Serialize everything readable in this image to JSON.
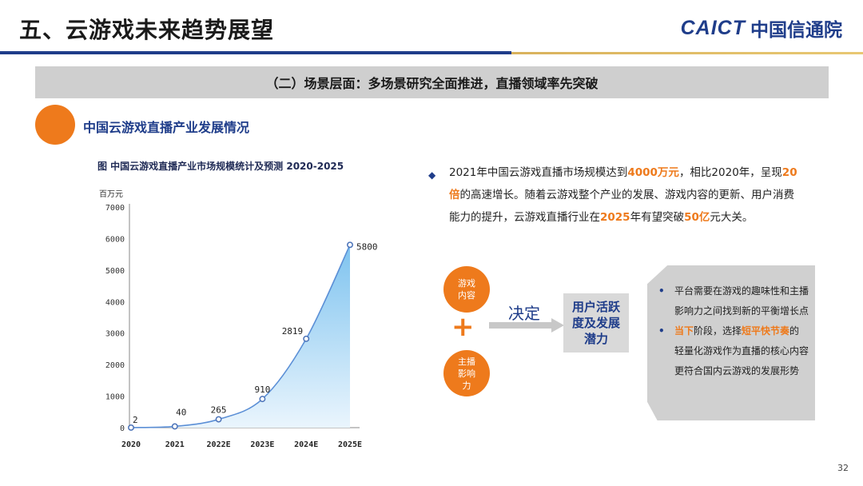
{
  "header": {
    "title": "五、云游戏未来趋势展望",
    "logo_en": "CAICT",
    "logo_cn": "中国信通院"
  },
  "section": {
    "label": "（二）场景层面：多场景研究全面推进，直播领域率先突破",
    "subheading": "中国云游戏直播产业发展情况"
  },
  "chart": {
    "caption": "图  中国云游戏直播产业市场规模统计及预测  2020-2025"
  },
  "chart_data": {
    "type": "area",
    "title": "图  中国云游戏直播产业市场规模统计及预测  2020-2025",
    "unit": "百万元",
    "categories": [
      "2020",
      "2021",
      "2022E",
      "2023E",
      "2024E",
      "2025E"
    ],
    "values": [
      2,
      40,
      265,
      910,
      2819,
      5800
    ],
    "ylim": [
      0,
      7000
    ],
    "yticks": [
      0,
      1000,
      2000,
      3000,
      4000,
      5000,
      6000,
      7000
    ],
    "grid": false,
    "colors": {
      "line": "#5b8fd6",
      "fill_top": "#7ec3ef",
      "fill_bottom": "#eaf5fd",
      "marker": "#4a72b8"
    }
  },
  "summary": {
    "p1": "2021年中国云游戏直播市场规模达到",
    "h1": "4000万元",
    "p2": "，相比2020年，呈现",
    "h2": "20倍",
    "p3": "的高速增长。随着云游戏整个产业的发展、游戏内容的更新、用户消费能力的提升，云游戏直播行业在",
    "h3": "2025",
    "p4": "年有望突破",
    "h4": "50亿",
    "p5": "元大关。"
  },
  "diagram": {
    "circle1": "游戏内容",
    "circle2": "主播影响力",
    "plus": "+",
    "decide": "决定",
    "result": "用户活跃度及发展潜力"
  },
  "card": {
    "item1": "平台需要在游戏的趣味性和主播影响力之间找到新的平衡增长点",
    "item2_hl1": "当下",
    "item2_a": "阶段，选择",
    "item2_hl2": "短平快节奏",
    "item2_b": "的轻量化游戏作为直播的核心内容更符合国内云游戏的发展形势"
  },
  "page_number": "32",
  "colors": {
    "brand_blue": "#1f3d8a",
    "accent_orange": "#ee7a1c",
    "gold": "#d9b25c",
    "gray_bar": "#cfcfcf"
  }
}
